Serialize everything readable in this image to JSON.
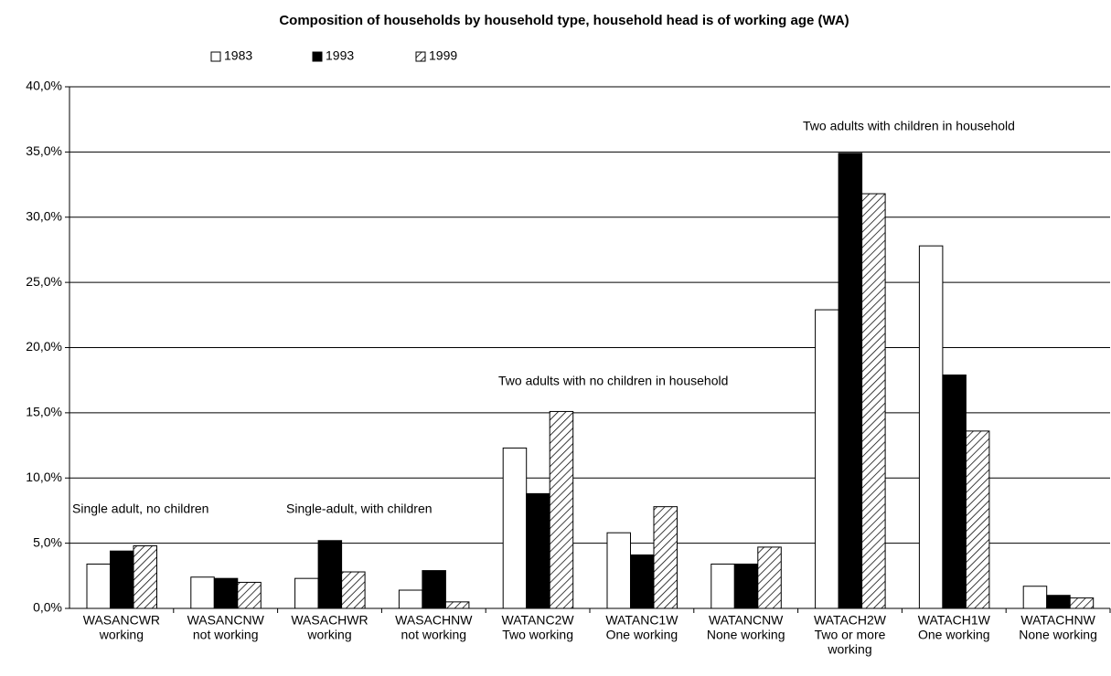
{
  "chart_data": {
    "type": "bar",
    "title": "Composition of households by household type, household head is of working age (WA)",
    "categories": [
      [
        "WASANCWR",
        "working"
      ],
      [
        "WASANCNW",
        "not working"
      ],
      [
        "WASACHWR",
        "working"
      ],
      [
        "WASACHNW",
        "not working"
      ],
      [
        "WATANC2W",
        "Two working"
      ],
      [
        "WATANC1W",
        "One working"
      ],
      [
        "WATANCNW",
        "None working"
      ],
      [
        "WATACH2W",
        "Two or more",
        "working"
      ],
      [
        "WATACH1W",
        "One working"
      ],
      [
        "WATACHNW",
        "None working"
      ]
    ],
    "series": [
      {
        "name": "1983",
        "color": "#ffffff",
        "values": [
          3.4,
          2.4,
          2.3,
          1.4,
          12.3,
          5.8,
          3.4,
          22.9,
          27.8,
          1.7
        ]
      },
      {
        "name": "1993",
        "color": "#000000",
        "values": [
          4.4,
          2.3,
          5.2,
          2.9,
          8.8,
          4.1,
          3.4,
          34.9,
          17.9,
          1.0
        ]
      },
      {
        "name": "1999",
        "color": "#000000",
        "hatch": true,
        "values": [
          4.8,
          2.0,
          2.8,
          0.5,
          15.1,
          7.8,
          4.7,
          31.8,
          13.6,
          0.8
        ]
      }
    ],
    "annotations": [
      "Single adult, no children",
      "Single-adult, with children",
      "Two adults with no children in household",
      "Two adults with children in household"
    ],
    "ylim": [
      0,
      40
    ],
    "yticks": [
      {
        "value": 0,
        "label": "0,0%"
      },
      {
        "value": 5,
        "label": "5,0%"
      },
      {
        "value": 10,
        "label": "10,0%"
      },
      {
        "value": 15,
        "label": "15,0%"
      },
      {
        "value": 20,
        "label": "20,0%"
      },
      {
        "value": 25,
        "label": "25,0%"
      },
      {
        "value": 30,
        "label": "30,0%"
      },
      {
        "value": 35,
        "label": "35,0%"
      },
      {
        "value": 40,
        "label": "40,0%"
      }
    ],
    "grid": true,
    "legend": "top"
  }
}
